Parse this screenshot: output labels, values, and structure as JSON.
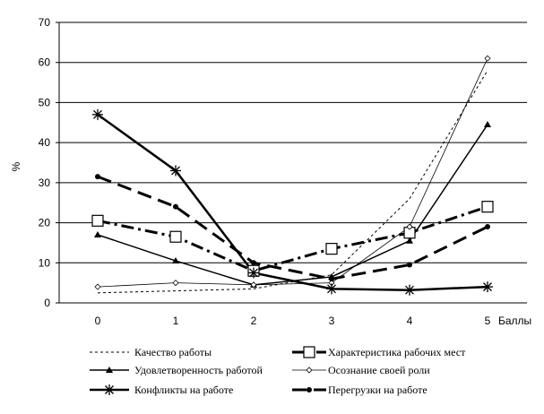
{
  "chart_data": {
    "type": "line",
    "title": "",
    "xlabel": "Баллы",
    "ylabel": "%",
    "x": [
      0,
      1,
      2,
      3,
      4,
      5
    ],
    "x_tick_labels": [
      "0",
      "1",
      "2",
      "3",
      "4",
      "5"
    ],
    "y_tick_labels": [
      "0",
      "10",
      "20",
      "30",
      "40",
      "50",
      "60",
      "70"
    ],
    "ylim": [
      0,
      70
    ],
    "grid": "horizontal",
    "legend_placement": "bottom",
    "series": [
      {
        "name": "Качество работы",
        "values": [
          2.5,
          3,
          3.5,
          7,
          26,
          58
        ]
      },
      {
        "name": "Характеристика рабочих мест",
        "values": [
          20.5,
          16.5,
          8,
          13.5,
          17.5,
          24
        ]
      },
      {
        "name": "Удовлетворенность работой",
        "values": [
          17,
          10.5,
          4.5,
          6.5,
          15.5,
          44.5
        ]
      },
      {
        "name": "Осознание своей роли",
        "values": [
          4,
          5,
          4.5,
          5,
          19,
          61
        ]
      },
      {
        "name": "Конфликты на работе",
        "values": [
          47,
          33,
          7.5,
          3.5,
          3.2,
          4
        ]
      },
      {
        "name": "Перегрузки на работе",
        "values": [
          31.5,
          24,
          10,
          6,
          9.5,
          19
        ]
      }
    ]
  }
}
